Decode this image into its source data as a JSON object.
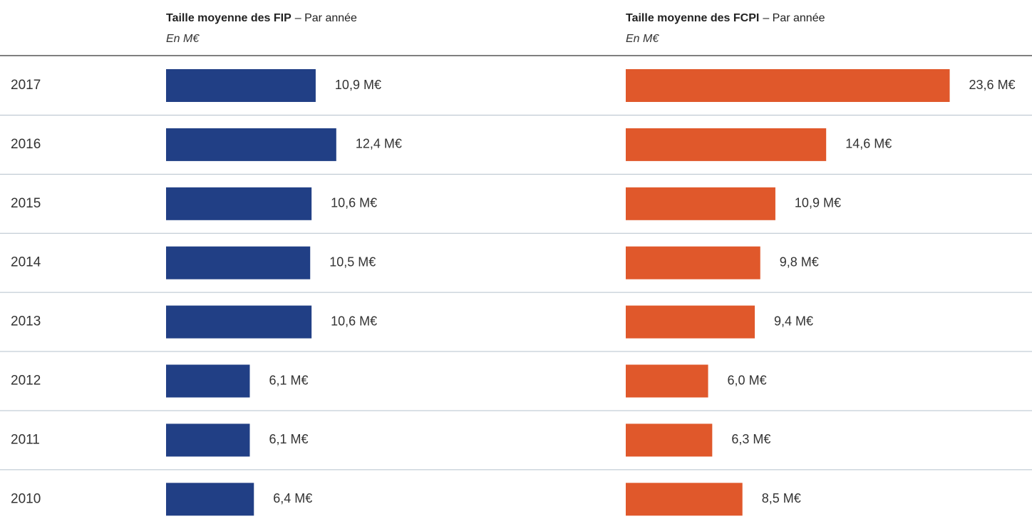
{
  "chart_data": [
    {
      "type": "hbar",
      "title": "Taille moyenne des FIP",
      "subtitle": "– Par année",
      "unit_label": "En M€",
      "categories": [
        "2017",
        "2016",
        "2015",
        "2014",
        "2013",
        "2012",
        "2011",
        "2010"
      ],
      "values": [
        10.9,
        12.4,
        10.6,
        10.5,
        10.6,
        6.1,
        6.1,
        6.4
      ],
      "value_labels": [
        "10,9 M€",
        "12,4 M€",
        "10,6 M€",
        "10,5 M€",
        "10,6 M€",
        "6,1 M€",
        "6,1 M€",
        "6,4 M€"
      ],
      "color": "#213f85"
    },
    {
      "type": "hbar",
      "title": "Taille moyenne des FCPI",
      "subtitle": "– Par année",
      "unit_label": "En M€",
      "values": [
        23.6,
        14.6,
        10.9,
        9.8,
        9.4,
        6.0,
        6.3,
        8.5
      ],
      "value_labels": [
        "23,6 M€",
        "14,6 M€",
        "10,9 M€",
        "9,8 M€",
        "9,4 M€",
        "6,0 M€",
        "6,3 M€",
        "8,5 M€"
      ],
      "color": "#e0582b"
    }
  ]
}
